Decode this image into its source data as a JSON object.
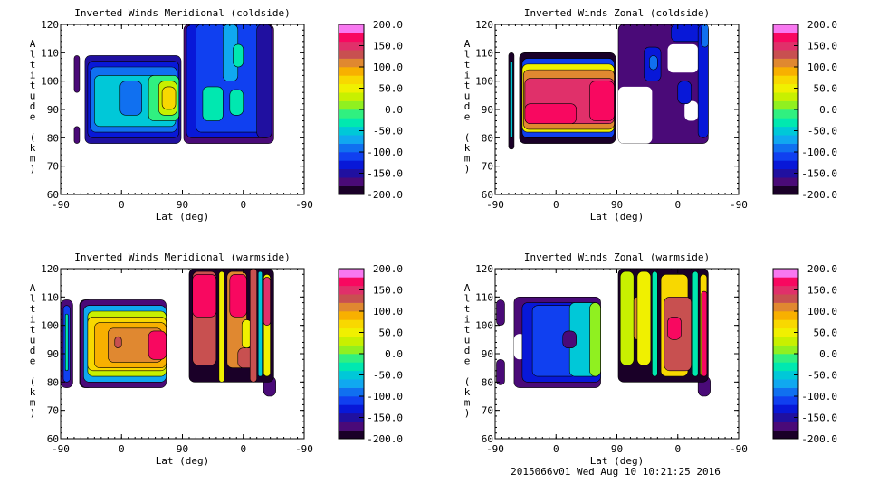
{
  "footer": "2015066v01 Wed Aug 10 10:21:25 2016",
  "colorbar": {
    "levels_min": -200,
    "levels_max": 200,
    "step": 20,
    "tick_labels": [
      "-200.0",
      "-150.0",
      "-100.0",
      "-50.0",
      "0.0",
      "50.0",
      "100.0",
      "150.0",
      "200.0"
    ],
    "colors": [
      "#1a0028",
      "#4a0a78",
      "#2010a0",
      "#0818d8",
      "#1040f0",
      "#1070f0",
      "#10a8f0",
      "#00c8d8",
      "#00e8b0",
      "#30f080",
      "#90f020",
      "#c8f000",
      "#f0f000",
      "#f8d800",
      "#f8b000",
      "#e08830",
      "#c85050",
      "#e0306a",
      "#f80860",
      "#f83c9c",
      "#f878f0"
    ]
  },
  "chart_data": [
    {
      "type": "heatmap",
      "title": "Inverted Winds Meridional (coldside)",
      "xlabel": "Lat (deg)",
      "ylabel": "Altitude (km)",
      "xtick_labels": [
        "-90",
        "0",
        "90",
        "0",
        "-90"
      ],
      "ytick_labels": [
        "60",
        "70",
        "80",
        "90",
        "100",
        "110",
        "120"
      ],
      "ylim": [
        60,
        120
      ],
      "track_range": [
        0,
        360
      ],
      "regions": [
        {
          "t": [
            20,
            28
          ],
          "alt": [
            96,
            109
          ],
          "v": -170
        },
        {
          "t": [
            20,
            28
          ],
          "alt": [
            78,
            84
          ],
          "v": -170
        },
        {
          "t": [
            36,
            178
          ],
          "alt": [
            78,
            109
          ],
          "v": -160
        },
        {
          "t": [
            40,
            175
          ],
          "alt": [
            80,
            107
          ],
          "v": -130
        },
        {
          "t": [
            44,
            172
          ],
          "alt": [
            82,
            105
          ],
          "v": -90
        },
        {
          "t": [
            50,
            170
          ],
          "alt": [
            84,
            102
          ],
          "v": -60
        },
        {
          "t": [
            88,
            120
          ],
          "alt": [
            88,
            100
          ],
          "v": -100
        },
        {
          "t": [
            130,
            175
          ],
          "alt": [
            86,
            102
          ],
          "v": -10
        },
        {
          "t": [
            145,
            172
          ],
          "alt": [
            88,
            100
          ],
          "v": 30
        },
        {
          "t": [
            150,
            170
          ],
          "alt": [
            90,
            98
          ],
          "v": 60
        },
        {
          "t": [
            182,
            315
          ],
          "alt": [
            78,
            120
          ],
          "v": -170
        },
        {
          "t": [
            186,
            312
          ],
          "alt": [
            80,
            120
          ],
          "v": -140
        },
        {
          "t": [
            200,
            300
          ],
          "alt": [
            82,
            120
          ],
          "v": -110
        },
        {
          "t": [
            240,
            262
          ],
          "alt": [
            100,
            120
          ],
          "v": -80
        },
        {
          "t": [
            210,
            240
          ],
          "alt": [
            86,
            98
          ],
          "v": -40
        },
        {
          "t": [
            250,
            270
          ],
          "alt": [
            88,
            97
          ],
          "v": -40
        },
        {
          "t": [
            255,
            270
          ],
          "alt": [
            105,
            113
          ],
          "v": -30
        },
        {
          "t": [
            290,
            312
          ],
          "alt": [
            80,
            120
          ],
          "v": -160
        }
      ]
    },
    {
      "type": "heatmap",
      "title": "Inverted Winds Zonal (coldside)",
      "xlabel": "Lat (deg)",
      "ylabel": "Altitude (km)",
      "xtick_labels": [
        "-90",
        "0",
        "90",
        "0",
        "-90"
      ],
      "ytick_labels": [
        "60",
        "70",
        "80",
        "90",
        "100",
        "110",
        "120"
      ],
      "ylim": [
        60,
        120
      ],
      "track_range": [
        0,
        360
      ],
      "regions": [
        {
          "t": [
            20,
            28
          ],
          "alt": [
            76,
            110
          ],
          "v": -190
        },
        {
          "t": [
            22,
            26
          ],
          "alt": [
            80,
            107
          ],
          "v": -60
        },
        {
          "t": [
            36,
            178
          ],
          "alt": [
            78,
            110
          ],
          "v": -200
        },
        {
          "t": [
            40,
            176
          ],
          "alt": [
            80,
            108
          ],
          "v": -120
        },
        {
          "t": [
            40,
            176
          ],
          "alt": [
            82,
            106
          ],
          "v": 40
        },
        {
          "t": [
            42,
            176
          ],
          "alt": [
            83,
            104
          ],
          "v": 100
        },
        {
          "t": [
            44,
            176
          ],
          "alt": [
            85,
            101
          ],
          "v": 140
        },
        {
          "t": [
            44,
            120
          ],
          "alt": [
            85,
            92
          ],
          "v": 170
        },
        {
          "t": [
            140,
            176
          ],
          "alt": [
            86,
            100
          ],
          "v": 170
        },
        {
          "t": [
            182,
            315
          ],
          "alt": [
            78,
            120
          ],
          "v": -170
        },
        {
          "t": [
            182,
            232
          ],
          "alt": [
            78,
            98
          ],
          "v": null
        },
        {
          "t": [
            255,
            300
          ],
          "alt": [
            103,
            113
          ],
          "v": null
        },
        {
          "t": [
            280,
            300
          ],
          "alt": [
            86,
            93
          ],
          "v": null
        },
        {
          "t": [
            220,
            245
          ],
          "alt": [
            100,
            112
          ],
          "v": -130
        },
        {
          "t": [
            228,
            240
          ],
          "alt": [
            104,
            109
          ],
          "v": -100
        },
        {
          "t": [
            270,
            290
          ],
          "alt": [
            92,
            100
          ],
          "v": -140
        },
        {
          "t": [
            260,
            312
          ],
          "alt": [
            114,
            120
          ],
          "v": -130
        },
        {
          "t": [
            300,
            315
          ],
          "alt": [
            80,
            120
          ],
          "v": -140
        },
        {
          "t": [
            305,
            315
          ],
          "alt": [
            112,
            120
          ],
          "v": -90
        }
      ]
    },
    {
      "type": "heatmap",
      "title": "Inverted Winds Meridional (warmside)",
      "xlabel": "Lat (deg)",
      "ylabel": "Altitude (km)",
      "xtick_labels": [
        "-90",
        "0",
        "90",
        "0",
        "-90"
      ],
      "ytick_labels": [
        "60",
        "70",
        "80",
        "90",
        "100",
        "110",
        "120"
      ],
      "ylim": [
        60,
        120
      ],
      "track_range": [
        0,
        360
      ],
      "regions": [
        {
          "t": [
            0,
            18
          ],
          "alt": [
            78,
            109
          ],
          "v": -170
        },
        {
          "t": [
            4,
            14
          ],
          "alt": [
            80,
            107
          ],
          "v": -120
        },
        {
          "t": [
            7,
            11
          ],
          "alt": [
            84,
            104
          ],
          "v": -30
        },
        {
          "t": [
            28,
            48
          ],
          "alt": [
            78,
            109
          ],
          "v": -200
        },
        {
          "t": [
            30,
            156
          ],
          "alt": [
            78,
            109
          ],
          "v": -170
        },
        {
          "t": [
            34,
            156
          ],
          "alt": [
            80,
            107
          ],
          "v": -80
        },
        {
          "t": [
            40,
            156
          ],
          "alt": [
            82,
            105
          ],
          "v": 20
        },
        {
          "t": [
            40,
            156
          ],
          "alt": [
            84,
            103
          ],
          "v": 70
        },
        {
          "t": [
            50,
            156
          ],
          "alt": [
            85,
            101
          ],
          "v": 90
        },
        {
          "t": [
            70,
            150
          ],
          "alt": [
            87,
            99
          ],
          "v": 110
        },
        {
          "t": [
            130,
            156
          ],
          "alt": [
            88,
            98
          ],
          "v": 170
        },
        {
          "t": [
            80,
            90
          ],
          "alt": [
            92,
            96
          ],
          "v": 130
        },
        {
          "t": [
            300,
            318
          ],
          "alt": [
            75,
            82
          ],
          "v": -170
        },
        {
          "t": [
            190,
            315
          ],
          "alt": [
            80,
            120
          ],
          "v": -200
        },
        {
          "t": [
            195,
            230
          ],
          "alt": [
            86,
            119
          ],
          "v": 120
        },
        {
          "t": [
            195,
            230
          ],
          "alt": [
            103,
            118
          ],
          "v": 170
        },
        {
          "t": [
            234,
            242
          ],
          "alt": [
            80,
            119
          ],
          "v": 40
        },
        {
          "t": [
            246,
            275
          ],
          "alt": [
            85,
            119
          ],
          "v": 110
        },
        {
          "t": [
            250,
            275
          ],
          "alt": [
            103,
            118
          ],
          "v": 170
        },
        {
          "t": [
            262,
            290
          ],
          "alt": [
            85,
            92
          ],
          "v": 130
        },
        {
          "t": [
            268,
            282
          ],
          "alt": [
            92,
            102
          ],
          "v": 40
        },
        {
          "t": [
            280,
            290
          ],
          "alt": [
            80,
            120
          ],
          "v": 130
        },
        {
          "t": [
            292,
            298
          ],
          "alt": [
            82,
            119
          ],
          "v": -60
        },
        {
          "t": [
            300,
            310
          ],
          "alt": [
            82,
            118
          ],
          "v": 40
        },
        {
          "t": [
            300,
            310
          ],
          "alt": [
            100,
            117
          ],
          "v": 150
        }
      ]
    },
    {
      "type": "heatmap",
      "title": "Inverted Winds Zonal (warmside)",
      "xlabel": "Lat (deg)",
      "ylabel": "Altitude (km)",
      "xtick_labels": [
        "-90",
        "0",
        "90",
        "0",
        "-90"
      ],
      "ytick_labels": [
        "60",
        "70",
        "80",
        "90",
        "100",
        "110",
        "120"
      ],
      "ylim": [
        60,
        120
      ],
      "track_range": [
        0,
        360
      ],
      "regions": [
        {
          "t": [
            2,
            14
          ],
          "alt": [
            100,
            109
          ],
          "v": -170
        },
        {
          "t": [
            2,
            14
          ],
          "alt": [
            79,
            88
          ],
          "v": -170
        },
        {
          "t": [
            28,
            156
          ],
          "alt": [
            78,
            110
          ],
          "v": -170
        },
        {
          "t": [
            28,
            45
          ],
          "alt": [
            88,
            97
          ],
          "v": null
        },
        {
          "t": [
            40,
            156
          ],
          "alt": [
            80,
            108
          ],
          "v": -140
        },
        {
          "t": [
            55,
            120
          ],
          "alt": [
            82,
            107
          ],
          "v": -110
        },
        {
          "t": [
            110,
            156
          ],
          "alt": [
            82,
            108
          ],
          "v": -60
        },
        {
          "t": [
            140,
            156
          ],
          "alt": [
            82,
            108
          ],
          "v": 0
        },
        {
          "t": [
            100,
            120
          ],
          "alt": [
            92,
            98
          ],
          "v": -180
        },
        {
          "t": [
            300,
            318
          ],
          "alt": [
            75,
            82
          ],
          "v": -170
        },
        {
          "t": [
            182,
            315
          ],
          "alt": [
            80,
            120
          ],
          "v": -200
        },
        {
          "t": [
            185,
            205
          ],
          "alt": [
            86,
            119
          ],
          "v": 20
        },
        {
          "t": [
            205,
            215
          ],
          "alt": [
            95,
            110
          ],
          "v": 110
        },
        {
          "t": [
            210,
            230
          ],
          "alt": [
            86,
            119
          ],
          "v": 50
        },
        {
          "t": [
            232,
            240
          ],
          "alt": [
            82,
            119
          ],
          "v": -30
        },
        {
          "t": [
            245,
            285
          ],
          "alt": [
            82,
            118
          ],
          "v": 60
        },
        {
          "t": [
            250,
            290
          ],
          "alt": [
            84,
            110
          ],
          "v": 120
        },
        {
          "t": [
            255,
            275
          ],
          "alt": [
            95,
            103
          ],
          "v": 170
        },
        {
          "t": [
            292,
            300
          ],
          "alt": [
            82,
            119
          ],
          "v": -40
        },
        {
          "t": [
            303,
            313
          ],
          "alt": [
            82,
            118
          ],
          "v": 60
        },
        {
          "t": [
            305,
            313
          ],
          "alt": [
            82,
            112
          ],
          "v": 160
        }
      ]
    }
  ]
}
